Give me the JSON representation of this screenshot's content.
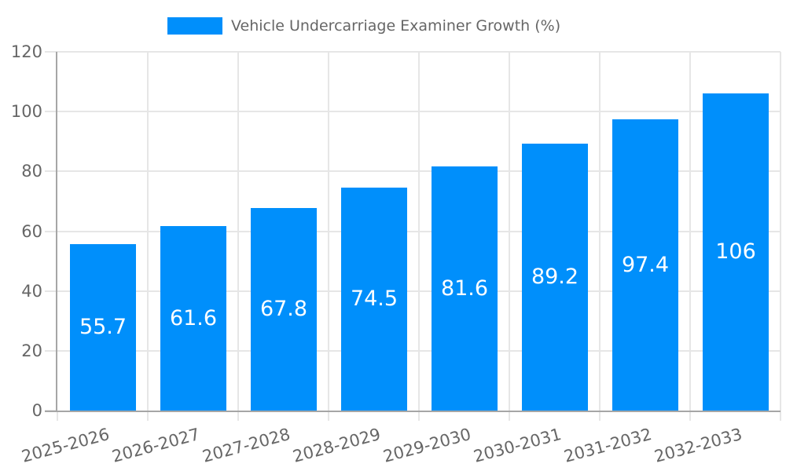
{
  "legend": {
    "label": "Vehicle Undercarriage Examiner Growth (%)"
  },
  "chart_data": {
    "type": "bar",
    "title": "Vehicle Undercarriage Examiner Growth (%)",
    "categories": [
      "2025-2026",
      "2026-2027",
      "2027-2028",
      "2028-2029",
      "2029-2030",
      "2030-2031",
      "2031-2032",
      "2032-2033"
    ],
    "values": [
      55.7,
      61.6,
      67.8,
      74.5,
      81.6,
      89.2,
      97.4,
      106
    ],
    "value_labels": [
      "55.7",
      "61.6",
      "67.8",
      "74.5",
      "81.6",
      "89.2",
      "97.4",
      "106"
    ],
    "xlabel": "",
    "ylabel": "",
    "ylim": [
      0,
      120
    ],
    "ytick_step": 20,
    "ytick_labels": [
      "0",
      "20",
      "40",
      "60",
      "80",
      "100",
      "120"
    ],
    "grid": true,
    "legend_position": "top",
    "x_tick_rotation_deg": -15,
    "colors": {
      "bar": "#008ffb",
      "grid": "#e6e6e6",
      "axis": "#a6a6a6",
      "text": "#666666",
      "value_label": "#ffffff",
      "background": "#ffffff"
    }
  }
}
